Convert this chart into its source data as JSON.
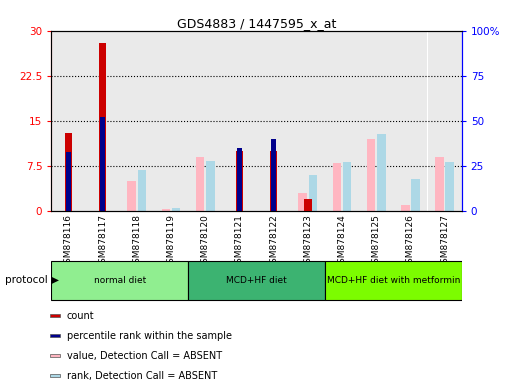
{
  "title": "GDS4883 / 1447595_x_at",
  "samples": [
    "GSM878116",
    "GSM878117",
    "GSM878118",
    "GSM878119",
    "GSM878120",
    "GSM878121",
    "GSM878122",
    "GSM878123",
    "GSM878124",
    "GSM878125",
    "GSM878126",
    "GSM878127"
  ],
  "count": [
    13,
    28,
    0,
    0,
    0,
    10,
    10,
    2,
    0,
    0,
    0,
    0
  ],
  "percentile_rank": [
    33,
    52,
    0,
    0,
    0,
    35,
    40,
    0,
    0,
    0,
    0,
    0
  ],
  "value_absent": [
    0,
    0,
    5,
    0.3,
    9,
    0,
    0,
    3,
    8,
    12,
    1,
    9
  ],
  "rank_absent": [
    0,
    0,
    23,
    1.5,
    28,
    0,
    0,
    20,
    27,
    43,
    18,
    27
  ],
  "ylim_left": [
    0,
    30
  ],
  "ylim_right": [
    0,
    100
  ],
  "yticks_left": [
    0,
    7.5,
    15,
    22.5,
    30
  ],
  "yticks_right": [
    0,
    25,
    50,
    75,
    100
  ],
  "ytick_labels_left": [
    "0",
    "7.5",
    "15",
    "22.5",
    "30"
  ],
  "ytick_labels_right": [
    "0",
    "25",
    "50",
    "75",
    "100%"
  ],
  "groups": [
    {
      "label": "normal diet",
      "start": 0,
      "end": 4,
      "color": "#90EE90"
    },
    {
      "label": "MCD+HF diet",
      "start": 4,
      "end": 8,
      "color": "#3CB371"
    },
    {
      "label": "MCD+HF diet with metformin",
      "start": 8,
      "end": 12,
      "color": "#7CFC00"
    }
  ],
  "bar_width": 0.25,
  "color_count": "#CC0000",
  "color_percentile": "#00008B",
  "color_value_absent": "#FFB6C1",
  "color_rank_absent": "#ADD8E6",
  "legend_items": [
    "count",
    "percentile rank within the sample",
    "value, Detection Call = ABSENT",
    "rank, Detection Call = ABSENT"
  ],
  "legend_colors": [
    "#CC0000",
    "#00008B",
    "#FFB6C1",
    "#ADD8E6"
  ],
  "protocol_label": "protocol",
  "col_bg": "#DCDCDC"
}
